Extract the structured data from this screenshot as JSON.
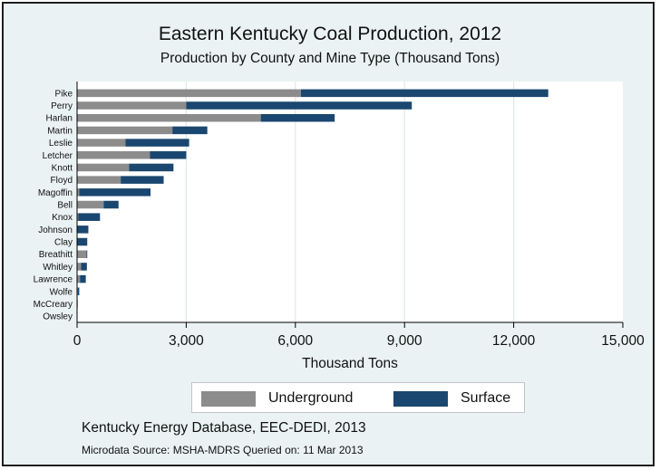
{
  "chart_data": {
    "type": "bar",
    "orientation": "horizontal",
    "stacked": true,
    "title": "Eastern Kentucky Coal Production, 2012",
    "subtitle": "Production by County and Mine Type (Thousand Tons)",
    "xlabel": "Thousand Tons",
    "ylabel": "",
    "xlim": [
      0,
      15000
    ],
    "xticks": [
      0,
      3000,
      6000,
      9000,
      12000,
      15000
    ],
    "xtick_labels": [
      "0",
      "3,000",
      "6,000",
      "9,000",
      "12,000",
      "15,000"
    ],
    "grid": true,
    "legend_position": "bottom",
    "categories": [
      "Pike",
      "Perry",
      "Harlan",
      "Martin",
      "Leslie",
      "Letcher",
      "Knott",
      "Floyd",
      "Magoffin",
      "Bell",
      "Knox",
      "Johnson",
      "Clay",
      "Breathitt",
      "Whitley",
      "Lawrence",
      "Wolfe",
      "McCreary",
      "Owsley"
    ],
    "series": [
      {
        "name": "Underground",
        "color": "#8c8c8c",
        "values": [
          6150,
          3000,
          5050,
          2620,
          1330,
          2000,
          1430,
          1200,
          60,
          730,
          30,
          0,
          10,
          260,
          110,
          80,
          20,
          20,
          10
        ]
      },
      {
        "name": "Surface",
        "color": "#1a476f",
        "values": [
          6800,
          6200,
          2030,
          960,
          1750,
          1000,
          1220,
          1180,
          1960,
          410,
          600,
          310,
          270,
          20,
          160,
          160,
          40,
          0,
          0
        ]
      }
    ]
  },
  "footer": {
    "source": "Kentucky Energy Database, EEC-DEDI, 2013",
    "note": "Microdata Source: MSHA-MDRS Queried on: 11 Mar 2013"
  }
}
